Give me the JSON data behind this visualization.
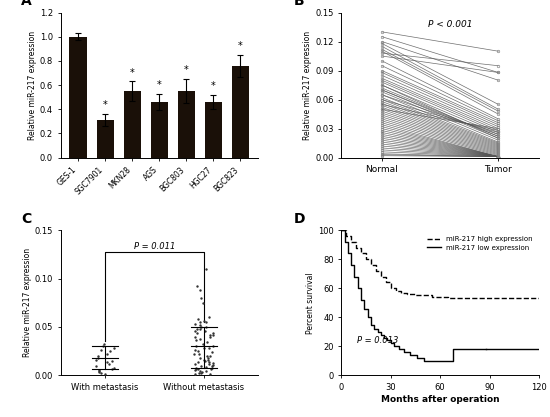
{
  "panel_A": {
    "categories": [
      "GES-1",
      "SGC7901",
      "MKN28",
      "AGS",
      "BGC803",
      "HGC27",
      "BGC823"
    ],
    "values": [
      1.0,
      0.31,
      0.55,
      0.46,
      0.55,
      0.46,
      0.76
    ],
    "errors": [
      0.03,
      0.05,
      0.08,
      0.07,
      0.1,
      0.06,
      0.09
    ],
    "bar_color": "#1a1008",
    "ylabel": "Relative miR-217 expression",
    "ylim": [
      0,
      1.2
    ],
    "yticks": [
      0.0,
      0.2,
      0.4,
      0.6,
      0.8,
      1.0,
      1.2
    ],
    "star_indices": [
      1,
      2,
      3,
      4,
      5,
      6
    ]
  },
  "panel_B": {
    "ylabel": "Relative miR-217 expression",
    "xlabels": [
      "Normal",
      "Tumor"
    ],
    "ylim": [
      0.0,
      0.15
    ],
    "yticks": [
      0.0,
      0.03,
      0.06,
      0.09,
      0.12,
      0.15
    ],
    "pvalue": "P < 0.001",
    "normal_values": [
      0.13,
      0.125,
      0.12,
      0.118,
      0.115,
      0.112,
      0.11,
      0.108,
      0.105,
      0.1,
      0.095,
      0.09,
      0.088,
      0.085,
      0.082,
      0.08,
      0.078,
      0.075,
      0.072,
      0.07,
      0.068,
      0.065,
      0.062,
      0.06,
      0.058,
      0.056,
      0.054,
      0.052,
      0.05,
      0.048,
      0.046,
      0.044,
      0.042,
      0.04,
      0.038,
      0.036,
      0.034,
      0.032,
      0.03,
      0.028,
      0.026,
      0.024,
      0.022,
      0.02,
      0.018,
      0.016,
      0.014,
      0.012,
      0.01,
      0.008,
      0.006,
      0.004,
      0.003,
      0.002,
      0.05,
      0.055,
      0.06,
      0.065,
      0.07,
      0.075
    ],
    "tumor_values": [
      0.11,
      0.088,
      0.08,
      0.055,
      0.05,
      0.048,
      0.045,
      0.095,
      0.088,
      0.04,
      0.038,
      0.036,
      0.034,
      0.032,
      0.03,
      0.028,
      0.026,
      0.024,
      0.022,
      0.02,
      0.018,
      0.016,
      0.015,
      0.014,
      0.013,
      0.012,
      0.011,
      0.01,
      0.009,
      0.008,
      0.007,
      0.006,
      0.005,
      0.004,
      0.003,
      0.002,
      0.001,
      0.001,
      0.001,
      0.001,
      0.001,
      0.001,
      0.001,
      0.001,
      0.001,
      0.001,
      0.001,
      0.001,
      0.001,
      0.001,
      0.001,
      0.001,
      0.001,
      0.001,
      0.03,
      0.028,
      0.026,
      0.024,
      0.022,
      0.02
    ]
  },
  "panel_C": {
    "ylabel": "Relative miR-217 expression",
    "xlabels": [
      "With metastasis",
      "Without metastasis"
    ],
    "ylim": [
      0.0,
      0.15
    ],
    "yticks": [
      0.0,
      0.05,
      0.1,
      0.15
    ],
    "pvalue": "P = 0.011",
    "group1_mean": 0.018,
    "group1_sd_low": 0.006,
    "group1_sd_high": 0.03,
    "group2_mean": 0.03,
    "group2_sd_low": 0.008,
    "group2_sd_high": 0.05,
    "group1_points": [
      0.03,
      0.028,
      0.025,
      0.022,
      0.02,
      0.018,
      0.016,
      0.015,
      0.014,
      0.012,
      0.01,
      0.008,
      0.006,
      0.005,
      0.004,
      0.003,
      0.002,
      0.001,
      0.032,
      0.026
    ],
    "group2_points": [
      0.11,
      0.092,
      0.088,
      0.08,
      0.075,
      0.06,
      0.058,
      0.056,
      0.055,
      0.053,
      0.05,
      0.048,
      0.046,
      0.044,
      0.042,
      0.04,
      0.038,
      0.036,
      0.034,
      0.032,
      0.03,
      0.028,
      0.026,
      0.024,
      0.022,
      0.02,
      0.018,
      0.016,
      0.015,
      0.014,
      0.013,
      0.012,
      0.011,
      0.01,
      0.009,
      0.008,
      0.007,
      0.006,
      0.005,
      0.004,
      0.003,
      0.002,
      0.001,
      0.05,
      0.048,
      0.046,
      0.044,
      0.042,
      0.04,
      0.03,
      0.028,
      0.025,
      0.022,
      0.02,
      0.018,
      0.016,
      0.014,
      0.012,
      0.01,
      0.008,
      0.006,
      0.004,
      0.002,
      0.001,
      0.055,
      0.052
    ]
  },
  "panel_D": {
    "ylabel": "Percent survival",
    "xlabel": "Months after operation",
    "ylim": [
      0,
      100
    ],
    "xlim": [
      0,
      120
    ],
    "yticks": [
      0,
      20,
      40,
      60,
      80,
      100
    ],
    "xticks": [
      0,
      30,
      60,
      90,
      120
    ],
    "pvalue": "P = 0.013",
    "legend_high": "miR-217 high expression",
    "legend_low": "miR-217 low expression",
    "high_x": [
      0,
      3,
      6,
      9,
      12,
      15,
      18,
      21,
      24,
      27,
      30,
      33,
      36,
      40,
      45,
      50,
      55,
      60,
      65,
      70,
      75,
      80,
      85,
      90,
      95,
      100,
      105,
      110,
      115,
      120
    ],
    "high_y": [
      100,
      96,
      92,
      88,
      84,
      80,
      76,
      72,
      68,
      64,
      60,
      58,
      57,
      56,
      55,
      55,
      54,
      54,
      53,
      53,
      53,
      53,
      53,
      53,
      53,
      53,
      53,
      53,
      53,
      53
    ],
    "low_x": [
      0,
      2,
      4,
      6,
      8,
      10,
      12,
      14,
      16,
      18,
      20,
      22,
      24,
      26,
      28,
      30,
      32,
      35,
      38,
      42,
      46,
      50,
      55,
      60,
      65,
      68,
      75,
      88
    ],
    "low_y": [
      100,
      92,
      84,
      76,
      68,
      60,
      52,
      46,
      40,
      35,
      32,
      30,
      28,
      26,
      24,
      22,
      20,
      18,
      16,
      14,
      12,
      10,
      10,
      10,
      10,
      18,
      18,
      18
    ]
  },
  "panel_labels": [
    "A",
    "B",
    "C",
    "D"
  ]
}
